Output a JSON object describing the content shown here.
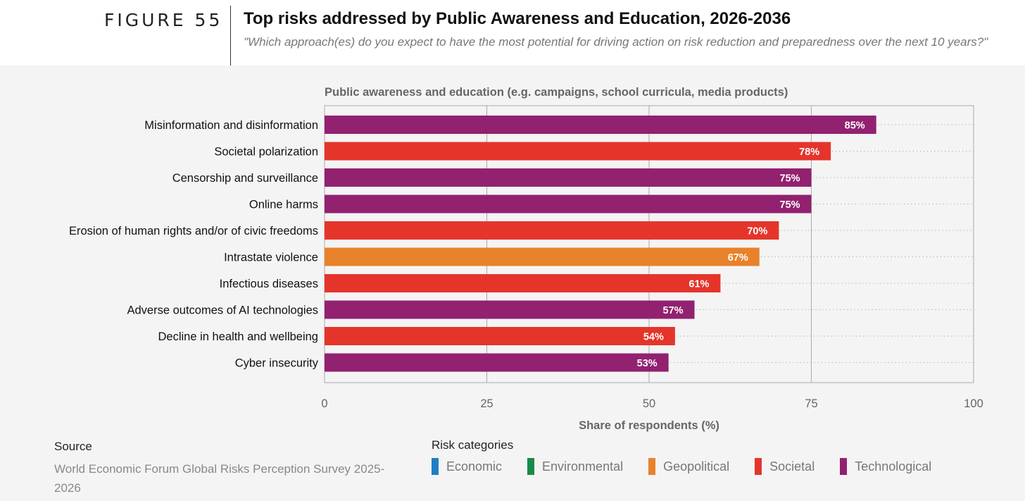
{
  "header": {
    "figure_label": "FIGURE 55",
    "title": "Top risks addressed by Public Awareness and Education, 2026-2036",
    "subtitle": "\"Which approach(es) do you expect to have the most potential for driving action on risk reduction and preparedness over the next 10 years?\""
  },
  "chart_data": {
    "type": "bar",
    "orientation": "horizontal",
    "title": "Public awareness and education (e.g. campaigns, school curricula, media products)",
    "xlabel": "Share of respondents (%)",
    "ylabel": "",
    "xlim": [
      0,
      100
    ],
    "xticks": [
      0,
      25,
      50,
      75,
      100
    ],
    "grid": true,
    "categories": [
      "Misinformation and disinformation",
      "Societal polarization",
      "Censorship and surveillance",
      "Online harms",
      "Erosion of human rights and/or of civic freedoms",
      "Intrastate violence",
      "Infectious diseases",
      "Adverse outcomes of AI technologies",
      "Decline in health and wellbeing",
      "Cyber insecurity"
    ],
    "values": [
      85,
      78,
      75,
      75,
      70,
      67,
      61,
      57,
      54,
      53
    ],
    "value_labels": [
      "85%",
      "78%",
      "75%",
      "75%",
      "70%",
      "67%",
      "61%",
      "57%",
      "54%",
      "53%"
    ],
    "bar_categories": [
      "Technological",
      "Societal",
      "Technological",
      "Technological",
      "Societal",
      "Geopolitical",
      "Societal",
      "Technological",
      "Societal",
      "Technological"
    ]
  },
  "source": {
    "heading": "Source",
    "text": "World Economic Forum Global Risks Perception Survey 2025-2026"
  },
  "legend": {
    "heading": "Risk categories",
    "items": [
      {
        "label": "Economic",
        "color": "#1f7fc6"
      },
      {
        "label": "Environmental",
        "color": "#1a8a4a"
      },
      {
        "label": "Geopolitical",
        "color": "#e8822a"
      },
      {
        "label": "Societal",
        "color": "#e5352b"
      },
      {
        "label": "Technological",
        "color": "#922170"
      }
    ]
  }
}
